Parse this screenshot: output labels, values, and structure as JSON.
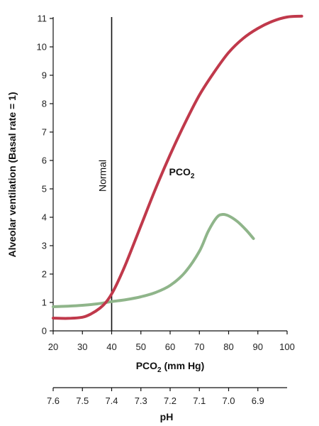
{
  "chart_data": {
    "type": "line",
    "ylabel": "Alveolar ventilation (Basal rate = 1)",
    "xlabel": {
      "main": "PCO",
      "sub": "2",
      "unit": " (mm Hg)"
    },
    "x2label": "pH",
    "xlim": [
      20,
      100
    ],
    "ylim": [
      0,
      11
    ],
    "x_ticks": [
      20,
      30,
      40,
      50,
      60,
      70,
      80,
      90,
      100
    ],
    "y_ticks": [
      0,
      1,
      2,
      3,
      4,
      5,
      6,
      7,
      8,
      9,
      10,
      11
    ],
    "ph_ticks": [
      {
        "x": 20,
        "label": "7.6"
      },
      {
        "x": 30,
        "label": "7.5"
      },
      {
        "x": 40,
        "label": "7.4"
      },
      {
        "x": 50,
        "label": "7.3"
      },
      {
        "x": 60,
        "label": "7.2"
      },
      {
        "x": 70,
        "label": "7.1"
      },
      {
        "x": 80,
        "label": "7.0"
      },
      {
        "x": 90,
        "label": "6.9"
      }
    ],
    "ph_axis_range": [
      20,
      100
    ],
    "normal_line": {
      "x": 40,
      "label": "Normal"
    },
    "series": [
      {
        "name": "PCO2",
        "label_main": "PCO",
        "label_sub": "2",
        "label_at": {
          "x": 64,
          "y": 5.6
        },
        "color": "#c0394b",
        "points": [
          [
            20,
            0.45
          ],
          [
            25,
            0.44
          ],
          [
            30,
            0.48
          ],
          [
            33,
            0.6
          ],
          [
            36,
            0.8
          ],
          [
            38,
            1.0
          ],
          [
            40,
            1.3
          ],
          [
            42,
            1.7
          ],
          [
            45,
            2.4
          ],
          [
            50,
            3.7
          ],
          [
            55,
            5.0
          ],
          [
            60,
            6.2
          ],
          [
            65,
            7.3
          ],
          [
            70,
            8.3
          ],
          [
            75,
            9.1
          ],
          [
            80,
            9.8
          ],
          [
            85,
            10.3
          ],
          [
            90,
            10.65
          ],
          [
            95,
            10.9
          ],
          [
            100,
            11.05
          ],
          [
            105,
            11.08
          ]
        ]
      },
      {
        "name": "pH",
        "color": "#8fb58a",
        "points": [
          [
            20,
            0.85
          ],
          [
            25,
            0.87
          ],
          [
            30,
            0.9
          ],
          [
            35,
            0.95
          ],
          [
            40,
            1.03
          ],
          [
            45,
            1.1
          ],
          [
            50,
            1.2
          ],
          [
            55,
            1.35
          ],
          [
            60,
            1.6
          ],
          [
            65,
            2.05
          ],
          [
            70,
            2.8
          ],
          [
            73,
            3.5
          ],
          [
            76,
            4.0
          ],
          [
            78,
            4.1
          ],
          [
            80,
            4.05
          ],
          [
            83,
            3.85
          ],
          [
            86,
            3.55
          ],
          [
            88.5,
            3.25
          ]
        ]
      }
    ]
  }
}
